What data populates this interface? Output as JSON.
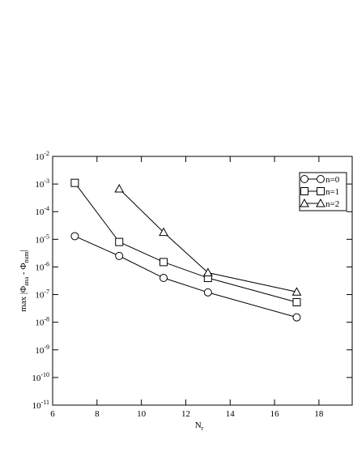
{
  "chart_data": {
    "type": "line",
    "xlabel": [
      "N",
      "r"
    ],
    "ylabel": [
      "max |Φ",
      "ana",
      " - Φ",
      "num",
      "|"
    ],
    "x": [
      7,
      9,
      11,
      13,
      17
    ],
    "series": [
      {
        "name": "n=0",
        "marker": "circle",
        "color": "#000000",
        "values": [
          1.3e-05,
          2.5e-06,
          4e-07,
          1.2e-07,
          1.5e-08
        ]
      },
      {
        "name": "n=1",
        "marker": "square",
        "color": "#000000",
        "values": [
          0.0011,
          8e-06,
          1.5e-06,
          4e-07,
          5.3e-08
        ]
      },
      {
        "name": "n=2",
        "marker": "triangle",
        "color": "#000000",
        "values": [
          null,
          0.00067,
          1.8e-05,
          6.2e-07,
          1.25e-07
        ]
      }
    ],
    "xlim": [
      6,
      19.5
    ],
    "xticks": [
      6,
      8,
      10,
      12,
      14,
      16,
      18
    ],
    "ylim": [
      1e-11,
      0.01
    ],
    "log_y": true,
    "yticks": [
      {
        "value": 1e-11,
        "label": "10",
        "exponent": "-11"
      },
      {
        "value": 1e-10,
        "label": "10",
        "exponent": "-10"
      },
      {
        "value": 1e-09,
        "label": "10",
        "exponent": "-9"
      },
      {
        "value": 1e-08,
        "label": "10",
        "exponent": "-8"
      },
      {
        "value": 1e-07,
        "label": "10",
        "exponent": "-7"
      },
      {
        "value": 1e-06,
        "label": "10",
        "exponent": "-6"
      },
      {
        "value": 1e-05,
        "label": "10",
        "exponent": "-5"
      },
      {
        "value": 0.0001,
        "label": "10",
        "exponent": "-4"
      },
      {
        "value": 0.001,
        "label": "10",
        "exponent": "-3"
      },
      {
        "value": 0.01,
        "label": "10",
        "exponent": "-2"
      }
    ],
    "legend": "upper right"
  }
}
